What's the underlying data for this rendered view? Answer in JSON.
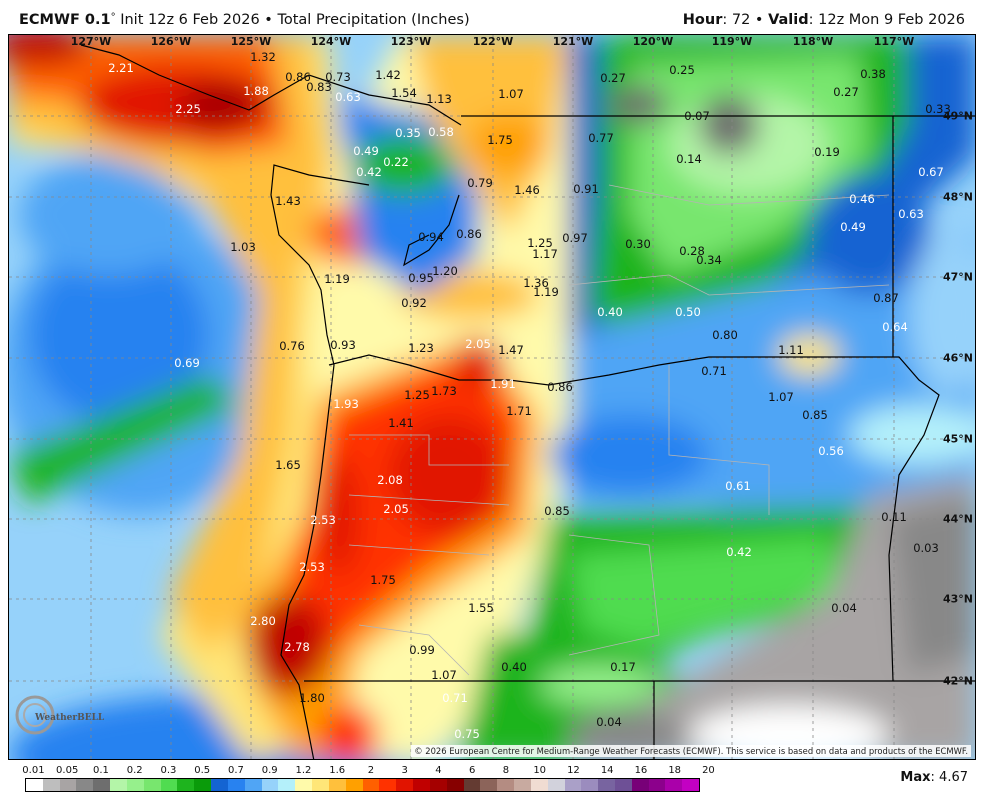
{
  "header": {
    "model": "ECMWF 0.1",
    "degree": "°",
    "init": " Init 12z 6 Feb 2026 • Total Precipitation (Inches)",
    "hour_label": "Hour",
    "hour_value": ": 72 • ",
    "valid_label": "Valid",
    "valid_value": ": 12z Mon 9 Feb 2026"
  },
  "map": {
    "longitudes": [
      "127°W",
      "126°W",
      "125°W",
      "124°W",
      "123°W",
      "122°W",
      "121°W",
      "120°W",
      "119°W",
      "118°W",
      "117°W"
    ],
    "latitudes": [
      "49°N",
      "48°N",
      "47°N",
      "46°N",
      "45°N",
      "44°N",
      "43°N",
      "42°N"
    ],
    "values": [
      "2.21",
      "2.25",
      "1.88",
      "0.63",
      "0.49",
      "0.35",
      "0.42",
      "0.22",
      "0.58",
      "1.93",
      "2.08",
      "2.05",
      "2.53",
      "2.53",
      "2.80",
      "2.78",
      "2.05",
      "1.91",
      "0.69",
      "0.40",
      "0.50",
      "0.46",
      "0.49",
      "0.63",
      "0.67",
      "0.64",
      "0.56",
      "0.61",
      "0.42",
      "0.71",
      "0.75",
      "1.32",
      "0.86",
      "0.83",
      "0.73",
      "1.42",
      "1.54",
      "1.13",
      "1.07",
      "0.27",
      "0.25",
      "0.38",
      "0.27",
      "0.33",
      "0.07",
      "0.77",
      "1.75",
      "0.14",
      "0.19",
      "0.79",
      "1.46",
      "0.91",
      "1.43",
      "1.03",
      "0.94",
      "0.86",
      "1.25",
      "0.97",
      "1.17",
      "0.30",
      "0.28",
      "0.34",
      "1.20",
      "0.95",
      "1.19",
      "1.36",
      "1.19",
      "0.92",
      "0.87",
      "0.80",
      "0.76",
      "0.93",
      "1.23",
      "1.47",
      "1.11",
      "0.71",
      "0.86",
      "1.25",
      "1.73",
      "1.07",
      "1.71",
      "0.85",
      "1.41",
      "1.65",
      "0.85",
      "0.11",
      "0.03",
      "1.75",
      "1.55",
      "0.04",
      "0.99",
      "0.40",
      "0.17",
      "1.07",
      "1.80",
      "0.04"
    ],
    "copyright": "© 2026 European Centre for Medium-Range Weather Forecasts (ECMWF). This service is based on data and products of the ECMWF.",
    "logo": "WeatherBELL"
  },
  "colorbar": {
    "labels": [
      "0.01",
      "0.05",
      "0.1",
      "0.2",
      "0.3",
      "0.5",
      "0.7",
      "0.9",
      "1.2",
      "1.6",
      "2",
      "3",
      "4",
      "6",
      "8",
      "10",
      "12",
      "14",
      "16",
      "18",
      "20"
    ],
    "colors": [
      "#ffffff",
      "#bebebe",
      "#a8a4a4",
      "#888888",
      "#6e6e6e",
      "#b4f5a8",
      "#96f08c",
      "#78e66e",
      "#50dc50",
      "#1eb41e",
      "#0a9b0a",
      "#1464d2",
      "#2882f0",
      "#50a5f5",
      "#96d2fa",
      "#b4f0fa",
      "#fffaaa",
      "#ffe678",
      "#ffc03c",
      "#ffa000",
      "#ff6000",
      "#ff3200",
      "#e11400",
      "#c00000",
      "#a50000",
      "#870000",
      "#643b32",
      "#8c645a",
      "#b48c82",
      "#c8aaa0",
      "#f0dcd2",
      "#d2d2dc",
      "#aaa0c8",
      "#9b8cbe",
      "#7864a0",
      "#6e5096",
      "#780078",
      "#8c008c",
      "#aa00aa",
      "#c300c3"
    ]
  },
  "max": {
    "label": "Max",
    "value": ": 4.67"
  }
}
